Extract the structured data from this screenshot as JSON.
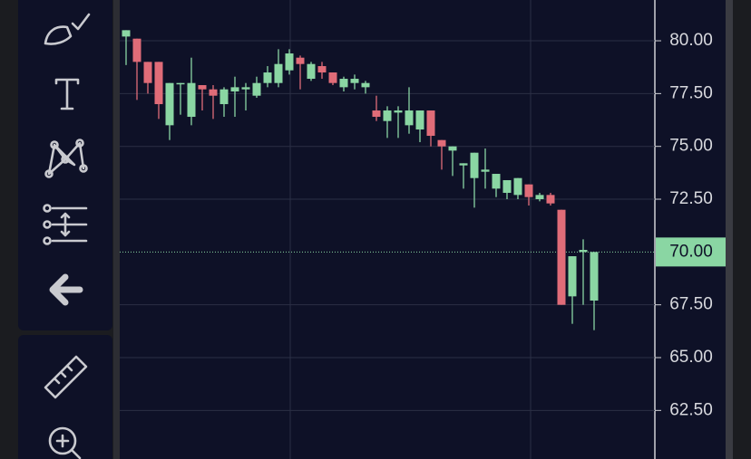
{
  "chart_data": {
    "type": "candlestick",
    "open": [
      80.2,
      80.1,
      79.0,
      79.0,
      76.0,
      78.0,
      76.4,
      77.9,
      77.7,
      77.0,
      77.6,
      77.7,
      77.4,
      78.0,
      78.0,
      78.6,
      79.2,
      78.2,
      78.8,
      78.5,
      77.8,
      78.0,
      77.8,
      76.7,
      76.2,
      76.6,
      76.0,
      75.8,
      76.7,
      75.3,
      74.8,
      74.1,
      73.5,
      73.8,
      73.0,
      72.8,
      72.7,
      73.2,
      72.5,
      72.7,
      72.0,
      67.9,
      70.0,
      67.7
    ],
    "high": [
      80.5,
      80.1,
      79.0,
      79.0,
      78.0,
      78.0,
      79.2,
      77.9,
      77.9,
      77.8,
      78.3,
      78.0,
      78.3,
      78.8,
      79.6,
      79.6,
      79.3,
      79.0,
      79.0,
      78.5,
      78.3,
      78.4,
      78.1,
      77.4,
      76.9,
      76.9,
      77.8,
      76.7,
      76.7,
      75.3,
      75.0,
      74.2,
      74.7,
      74.9,
      73.7,
      73.4,
      73.5,
      73.2,
      72.8,
      72.8,
      72.0,
      69.8,
      70.6,
      70.0
    ],
    "low": [
      78.85,
      77.2,
      77.5,
      76.3,
      75.3,
      76.5,
      76.0,
      76.7,
      76.3,
      76.4,
      76.4,
      76.7,
      77.3,
      77.8,
      77.8,
      78.4,
      77.7,
      78.1,
      78.2,
      77.9,
      77.6,
      77.7,
      77.5,
      76.2,
      75.4,
      75.4,
      75.6,
      75.2,
      75.0,
      73.9,
      73.6,
      73.0,
      72.1,
      73.0,
      72.6,
      72.5,
      72.5,
      72.2,
      72.4,
      72.2,
      67.5,
      66.6,
      67.5,
      66.3
    ],
    "close": [
      80.5,
      79.0,
      78.0,
      77.0,
      78.0,
      78.0,
      78.0,
      77.7,
      77.4,
      77.7,
      77.8,
      77.8,
      78.0,
      78.5,
      78.9,
      79.4,
      78.9,
      78.9,
      78.5,
      78.0,
      78.2,
      78.2,
      78.0,
      76.4,
      76.7,
      76.7,
      76.7,
      76.7,
      75.5,
      75.0,
      75.0,
      74.2,
      74.7,
      73.9,
      73.7,
      73.4,
      73.5,
      72.6,
      72.7,
      72.3,
      67.5,
      69.8,
      70.1,
      70.0
    ],
    "up_color": "#8ad6a3",
    "down_color": "#e06c78",
    "ylim": [
      60.2,
      81.93
    ],
    "yticks": [
      {
        "value": 80,
        "label": "80.00"
      },
      {
        "value": 77.5,
        "label": "77.50"
      },
      {
        "value": 75,
        "label": "75.00"
      },
      {
        "value": 72.5,
        "label": "72.50"
      },
      {
        "value": 67.5,
        "label": "67.50"
      },
      {
        "value": 65,
        "label": "65.00"
      },
      {
        "value": 62.5,
        "label": "62.50"
      }
    ],
    "price_line": {
      "value": 70,
      "label": "70.00",
      "color": "#8ad6a3"
    },
    "grid": true
  }
}
